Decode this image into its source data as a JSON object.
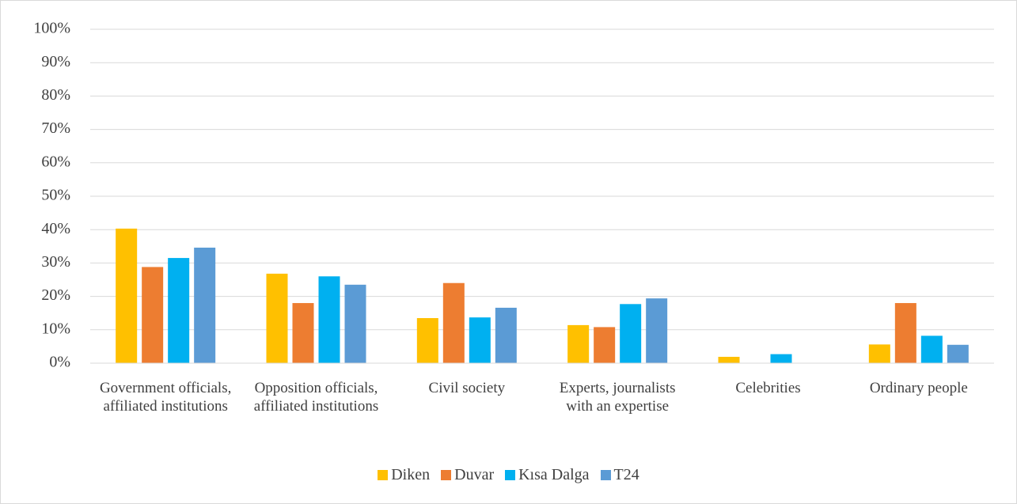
{
  "chart_data": {
    "type": "bar",
    "categories": [
      "Government officials, affiliated institutions",
      "Opposition officials, affiliated institutions",
      "Civil society",
      "Experts, journalists with an expertise",
      "Celebrities",
      "Ordinary people"
    ],
    "series": [
      {
        "name": "Diken",
        "color": "#ffc000",
        "values": [
          40.3,
          26.8,
          13.5,
          11.4,
          1.9,
          5.6
        ]
      },
      {
        "name": "Duvar",
        "color": "#ed7d31",
        "values": [
          28.8,
          18,
          24,
          10.8,
          0,
          18
        ]
      },
      {
        "name": "Kısa Dalga",
        "color": "#00b0f0",
        "values": [
          31.5,
          26,
          13.7,
          17.7,
          2.7,
          8.2
        ]
      },
      {
        "name": "T24",
        "color": "#5b9bd5",
        "values": [
          34.6,
          23.5,
          16.6,
          19.4,
          0,
          5.5
        ]
      }
    ],
    "ylim": [
      0,
      100
    ],
    "yticks": [
      {
        "value": 0,
        "label": "0%"
      },
      {
        "value": 10,
        "label": "10%"
      },
      {
        "value": 20,
        "label": "20%"
      },
      {
        "value": 30,
        "label": "30%"
      },
      {
        "value": 40,
        "label": "40%"
      },
      {
        "value": 50,
        "label": "50%"
      },
      {
        "value": 60,
        "label": "60%"
      },
      {
        "value": 70,
        "label": "70%"
      },
      {
        "value": 80,
        "label": "80%"
      },
      {
        "value": 90,
        "label": "90%"
      },
      {
        "value": 100,
        "label": "100%"
      }
    ],
    "grid": true,
    "legend": "bottom"
  }
}
